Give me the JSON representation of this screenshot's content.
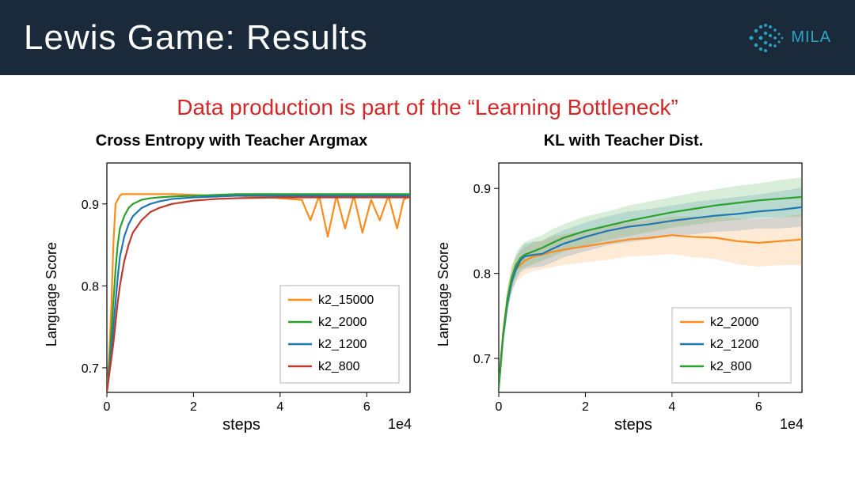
{
  "header": {
    "title": "Lewis Game: Results",
    "logo_text": "MILA",
    "bg_color": "#1a2a3a",
    "title_color": "#ffffff",
    "logo_color": "#2aa8c8"
  },
  "subtitle": {
    "text": "Data production is part of the “Learning Bottleneck”",
    "color": "#d22828",
    "fontsize": 28
  },
  "chart_common": {
    "ylabel": "Language Score",
    "xlabel": "steps",
    "x_exponent_label": "1e4",
    "xlim": [
      0,
      7
    ],
    "xticks": [
      0,
      2,
      4,
      6
    ],
    "tick_fontsize": 16,
    "label_fontsize": 20,
    "title_fontsize": 20,
    "line_width": 2.2,
    "background_color": "#ffffff",
    "axis_color": "#000000"
  },
  "chart_left": {
    "type": "line",
    "title": "Cross Entropy with Teacher Argmax",
    "ylim": [
      0.67,
      0.95
    ],
    "yticks": [
      0.7,
      0.8,
      0.9
    ],
    "legend_pos": "lower-right",
    "series": [
      {
        "name": "k2_15000",
        "color": "#ff8c1a",
        "x": [
          0,
          0.05,
          0.1,
          0.15,
          0.2,
          0.25,
          0.3,
          0.35,
          0.4,
          0.5,
          0.6,
          0.8,
          1.0,
          1.2,
          1.5,
          2.0,
          2.5,
          3.0,
          3.5,
          4.0,
          4.5,
          4.7,
          4.9,
          5.1,
          5.3,
          5.5,
          5.7,
          5.9,
          6.1,
          6.3,
          6.5,
          6.7,
          6.85,
          7.0
        ],
        "y": [
          0.67,
          0.71,
          0.77,
          0.85,
          0.9,
          0.905,
          0.91,
          0.912,
          0.912,
          0.912,
          0.912,
          0.912,
          0.912,
          0.912,
          0.912,
          0.911,
          0.91,
          0.91,
          0.909,
          0.907,
          0.905,
          0.88,
          0.91,
          0.86,
          0.91,
          0.87,
          0.91,
          0.865,
          0.905,
          0.88,
          0.91,
          0.87,
          0.905,
          0.91
        ]
      },
      {
        "name": "k2_2000",
        "color": "#2ca02c",
        "x": [
          0,
          0.05,
          0.1,
          0.15,
          0.2,
          0.25,
          0.3,
          0.4,
          0.5,
          0.6,
          0.8,
          1.0,
          1.2,
          1.5,
          2.0,
          2.5,
          3.0,
          4.0,
          5.0,
          6.0,
          7.0
        ],
        "y": [
          0.67,
          0.7,
          0.74,
          0.78,
          0.82,
          0.85,
          0.87,
          0.885,
          0.895,
          0.9,
          0.905,
          0.907,
          0.908,
          0.909,
          0.91,
          0.911,
          0.912,
          0.912,
          0.912,
          0.912,
          0.912
        ]
      },
      {
        "name": "k2_1200",
        "color": "#1f77b4",
        "x": [
          0,
          0.05,
          0.1,
          0.15,
          0.2,
          0.25,
          0.3,
          0.4,
          0.5,
          0.6,
          0.8,
          1.0,
          1.2,
          1.5,
          2.0,
          2.5,
          3.0,
          4.0,
          5.0,
          6.0,
          7.0
        ],
        "y": [
          0.67,
          0.695,
          0.72,
          0.75,
          0.78,
          0.81,
          0.835,
          0.86,
          0.875,
          0.885,
          0.895,
          0.9,
          0.903,
          0.906,
          0.908,
          0.909,
          0.91,
          0.91,
          0.91,
          0.91,
          0.91
        ]
      },
      {
        "name": "k2_800",
        "color": "#c0392b",
        "x": [
          0,
          0.05,
          0.1,
          0.15,
          0.2,
          0.25,
          0.3,
          0.4,
          0.5,
          0.6,
          0.8,
          1.0,
          1.2,
          1.5,
          2.0,
          2.5,
          3.0,
          4.0,
          5.0,
          6.0,
          7.0
        ],
        "y": [
          0.67,
          0.69,
          0.71,
          0.73,
          0.755,
          0.78,
          0.8,
          0.83,
          0.85,
          0.865,
          0.88,
          0.89,
          0.895,
          0.9,
          0.904,
          0.906,
          0.907,
          0.908,
          0.908,
          0.908,
          0.908
        ]
      }
    ]
  },
  "chart_right": {
    "type": "line",
    "title": "KL with Teacher Dist.",
    "ylim": [
      0.66,
      0.93
    ],
    "yticks": [
      0.7,
      0.8,
      0.9
    ],
    "legend_pos": "lower-right",
    "band_opacity": 0.18,
    "series": [
      {
        "name": "k2_2000",
        "color": "#ff8c1a",
        "x": [
          0,
          0.05,
          0.1,
          0.2,
          0.3,
          0.4,
          0.5,
          0.6,
          0.8,
          1.0,
          1.2,
          1.5,
          2.0,
          2.5,
          3.0,
          3.5,
          4.0,
          4.5,
          5.0,
          5.5,
          6.0,
          6.5,
          7.0
        ],
        "y": [
          0.665,
          0.7,
          0.73,
          0.77,
          0.795,
          0.805,
          0.81,
          0.815,
          0.82,
          0.822,
          0.825,
          0.828,
          0.832,
          0.836,
          0.84,
          0.842,
          0.845,
          0.843,
          0.842,
          0.838,
          0.836,
          0.838,
          0.84
        ],
        "band": [
          0.012,
          0.012,
          0.013,
          0.014,
          0.015,
          0.015,
          0.016,
          0.016,
          0.017,
          0.017,
          0.018,
          0.018,
          0.019,
          0.02,
          0.02,
          0.021,
          0.022,
          0.024,
          0.025,
          0.027,
          0.028,
          0.028,
          0.03
        ]
      },
      {
        "name": "k2_1200",
        "color": "#1f77b4",
        "x": [
          0,
          0.05,
          0.1,
          0.2,
          0.3,
          0.4,
          0.5,
          0.6,
          0.8,
          1.0,
          1.2,
          1.5,
          2.0,
          2.5,
          3.0,
          3.5,
          4.0,
          4.5,
          5.0,
          5.5,
          6.0,
          6.5,
          7.0
        ],
        "y": [
          0.665,
          0.695,
          0.725,
          0.765,
          0.79,
          0.805,
          0.815,
          0.82,
          0.822,
          0.823,
          0.828,
          0.835,
          0.843,
          0.85,
          0.855,
          0.858,
          0.862,
          0.865,
          0.868,
          0.87,
          0.873,
          0.875,
          0.878
        ],
        "band": [
          0.012,
          0.012,
          0.012,
          0.013,
          0.013,
          0.014,
          0.014,
          0.015,
          0.015,
          0.015,
          0.016,
          0.016,
          0.017,
          0.017,
          0.018,
          0.018,
          0.018,
          0.019,
          0.019,
          0.02,
          0.02,
          0.022,
          0.023
        ]
      },
      {
        "name": "k2_800",
        "color": "#2ca02c",
        "x": [
          0,
          0.05,
          0.1,
          0.2,
          0.3,
          0.4,
          0.5,
          0.6,
          0.8,
          1.0,
          1.2,
          1.5,
          2.0,
          2.5,
          3.0,
          3.5,
          4.0,
          4.5,
          5.0,
          5.5,
          6.0,
          6.5,
          7.0
        ],
        "y": [
          0.665,
          0.698,
          0.728,
          0.77,
          0.795,
          0.81,
          0.818,
          0.822,
          0.826,
          0.83,
          0.835,
          0.842,
          0.85,
          0.856,
          0.862,
          0.867,
          0.872,
          0.876,
          0.88,
          0.883,
          0.886,
          0.888,
          0.89
        ],
        "band": [
          0.012,
          0.012,
          0.012,
          0.013,
          0.013,
          0.014,
          0.014,
          0.015,
          0.015,
          0.015,
          0.016,
          0.016,
          0.017,
          0.017,
          0.018,
          0.018,
          0.018,
          0.019,
          0.019,
          0.02,
          0.02,
          0.022,
          0.023
        ]
      }
    ]
  }
}
